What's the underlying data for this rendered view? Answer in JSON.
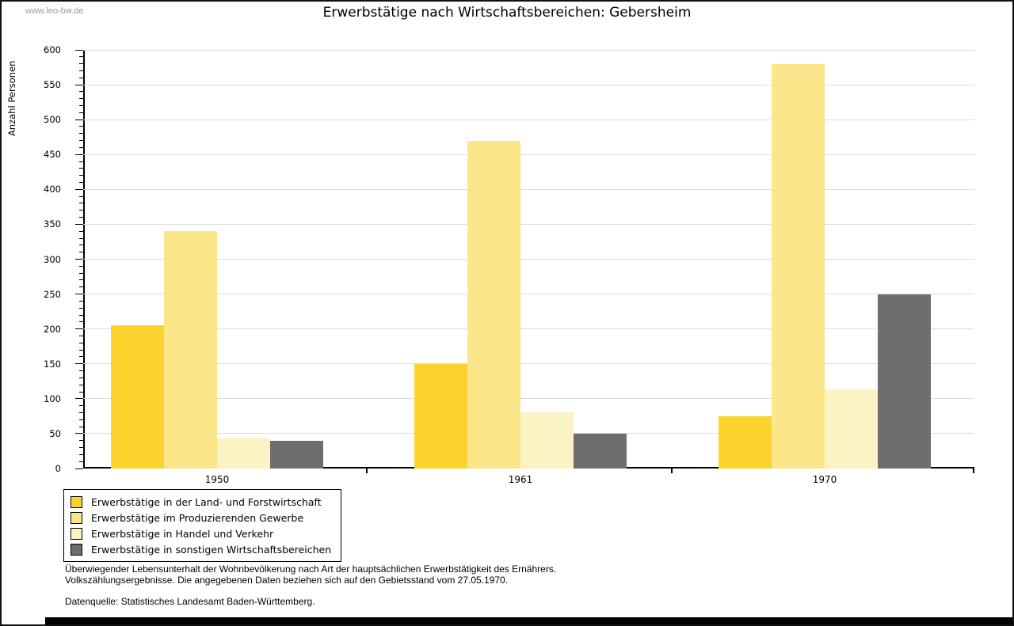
{
  "watermark": "www.leo-bw.de",
  "chart_data": {
    "type": "bar",
    "title": "Erwerbstätige nach Wirtschaftsbereichen: Gebersheim",
    "ylabel": "Anzahl Personen",
    "xlabel": "",
    "categories": [
      "1950",
      "1961",
      "1970"
    ],
    "series": [
      {
        "name": "Erwerbstätige in der Land- und Forstwirtschaft",
        "color": "#FCD32C",
        "values": [
          205,
          150,
          75
        ]
      },
      {
        "name": "Erwerbstätige im Produzierenden Gewerbe",
        "color": "#FBE68A",
        "values": [
          340,
          470,
          580
        ]
      },
      {
        "name": "Erwerbstätige in Handel und Verkehr",
        "color": "#FBF3C4",
        "values": [
          43,
          80,
          113
        ]
      },
      {
        "name": "Erwerbstätige in sonstigen Wirtschaftsbereichen",
        "color": "#6E6E6E",
        "values": [
          40,
          50,
          250
        ]
      }
    ],
    "ylim": [
      0,
      600
    ],
    "ytick_step": 50,
    "y_minor_tick_step": 10,
    "grid": true,
    "gridline_color": "#dcdcdc",
    "legend_position": "bottom-left"
  },
  "footnotes": {
    "line1": "Überwiegender Lebensunterhalt der Wohnbevölkerung nach Art der hauptsächlichen Erwerbstätigkeit des Ernährers.",
    "line2": "Volkszählungsergebnisse. Die angegebenen Daten beziehen sich auf den Gebietsstand vom 27.05.1970.",
    "source": "Datenquelle: Statistisches Landesamt Baden-Württemberg."
  }
}
